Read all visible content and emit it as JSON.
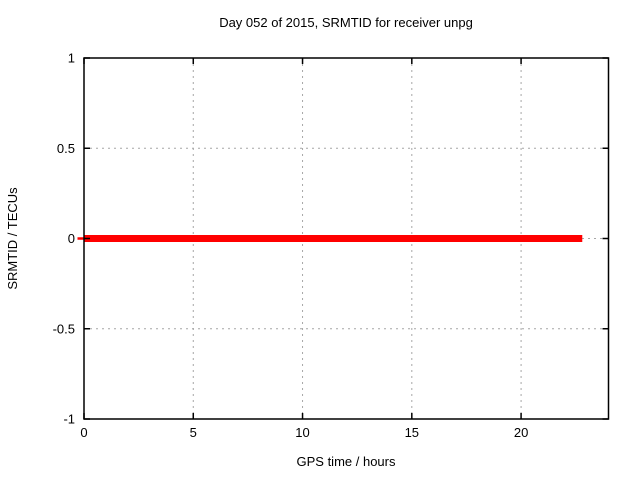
{
  "chart_data": {
    "type": "line",
    "title": "Day 052 of 2015, SRMTID for receiver unpg",
    "xlabel": "GPS time / hours",
    "ylabel": "SRMTID / TECUs",
    "xlim": [
      0,
      24
    ],
    "ylim": [
      -1,
      1
    ],
    "xticks": [
      0,
      5,
      10,
      15,
      20
    ],
    "xtick_labels": [
      "0",
      "5",
      "10",
      "15",
      "20"
    ],
    "yticks": [
      -1,
      -0.5,
      0,
      0.5,
      1
    ],
    "ytick_labels": [
      "-1",
      "-0.5",
      "0",
      "0.5",
      "1"
    ],
    "grid": "dotted",
    "grid_color": "#a6a6a6",
    "border_color": "#000000",
    "series": [
      {
        "name": "SRMTID",
        "color": "#ff0000",
        "line_width": 7,
        "x": [
          0,
          22.8
        ],
        "values": [
          0,
          0
        ]
      }
    ],
    "legend": "none"
  },
  "colors": {
    "background": "#ffffff",
    "text": "#000000"
  }
}
